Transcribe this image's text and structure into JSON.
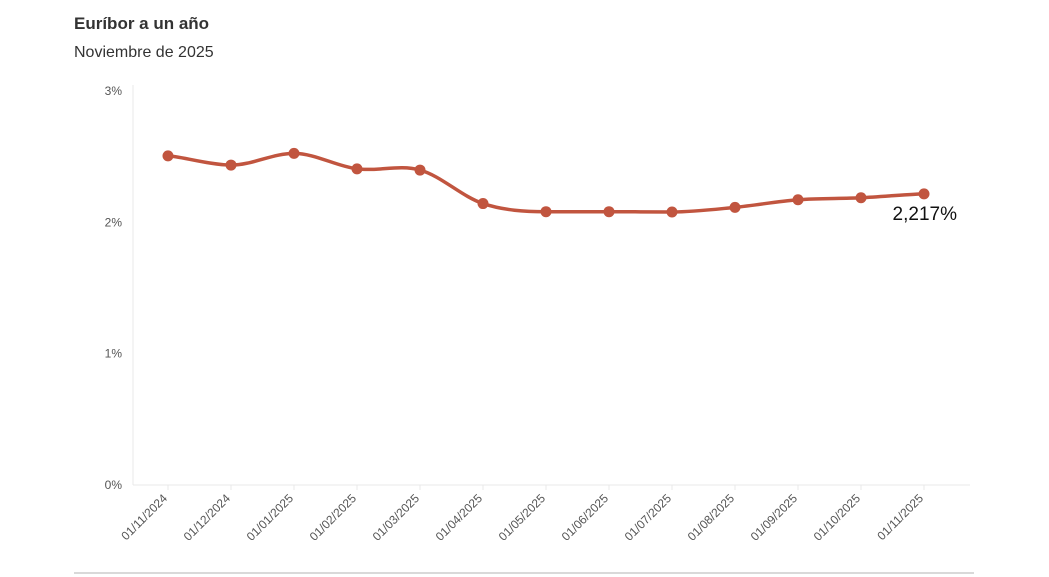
{
  "header": {
    "title": "Euríbor a un año",
    "subtitle": "Noviembre de 2025"
  },
  "colors": {
    "line": "#c1553f",
    "grid": "#e8e8e8",
    "axis_text": "#555555",
    "end_label": "#111111"
  },
  "chart_data": {
    "type": "line",
    "title": "Euríbor a un año",
    "subtitle": "Noviembre de 2025",
    "xlabel": "",
    "ylabel": "",
    "categories": [
      "01/11/2024",
      "01/12/2024",
      "01/01/2025",
      "01/02/2025",
      "01/03/2025",
      "01/04/2025",
      "01/05/2025",
      "01/06/2025",
      "01/07/2025",
      "01/08/2025",
      "01/09/2025",
      "01/10/2025",
      "01/11/2025"
    ],
    "series": [
      {
        "values": [
          2.506,
          2.436,
          2.525,
          2.407,
          2.398,
          2.143,
          2.081,
          2.081,
          2.079,
          2.114,
          2.172,
          2.187,
          2.217
        ]
      }
    ],
    "ylim": [
      0,
      3
    ],
    "y_ticks": [
      {
        "value": 0,
        "label": "0%"
      },
      {
        "value": 1,
        "label": "1%"
      },
      {
        "value": 2,
        "label": "2%"
      },
      {
        "value": 3,
        "label": "3%"
      }
    ],
    "end_label": "2,217%",
    "grid": "horizontal baseline only",
    "legend": "none",
    "line_style": "smooth"
  }
}
